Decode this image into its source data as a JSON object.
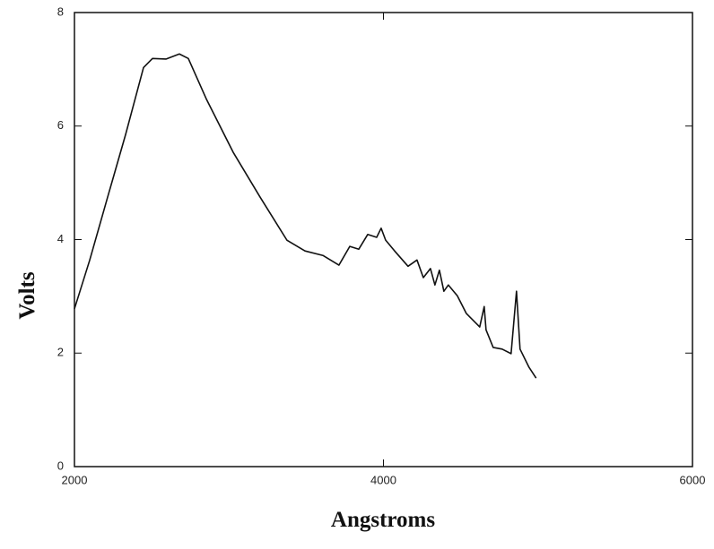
{
  "chart_data": {
    "type": "line",
    "x_label": "Angstroms",
    "y_label": "Volts",
    "xlim": [
      2000,
      6000
    ],
    "xticks": [
      2000,
      4000,
      6000
    ],
    "ylim": [
      0,
      8
    ],
    "yticks": [
      0,
      2,
      4,
      6,
      8
    ],
    "series": [
      {
        "color": "#111111",
        "x": [
          2000,
          2099,
          2215,
          2331,
          2447,
          2505,
          2592,
          2679,
          2737,
          2853,
          3027,
          3201,
          3375,
          3492,
          3608,
          3712,
          3782,
          3840,
          3898,
          3956,
          3985,
          4014,
          4072,
          4159,
          4217,
          4258,
          4304,
          4333,
          4362,
          4391,
          4420,
          4478,
          4536,
          4623,
          4652,
          4664,
          4710,
          4768,
          4826,
          4861,
          4884,
          4942,
          4988
        ],
        "values": [
          2.78,
          3.64,
          4.75,
          5.85,
          7.03,
          7.19,
          7.18,
          7.27,
          7.19,
          6.48,
          5.54,
          4.75,
          3.99,
          3.8,
          3.72,
          3.55,
          3.88,
          3.83,
          4.09,
          4.04,
          4.2,
          3.99,
          3.8,
          3.53,
          3.64,
          3.33,
          3.49,
          3.2,
          3.46,
          3.09,
          3.2,
          3.01,
          2.7,
          2.46,
          2.82,
          2.41,
          2.1,
          2.07,
          1.99,
          3.09,
          2.07,
          1.75,
          1.56
        ]
      }
    ]
  }
}
